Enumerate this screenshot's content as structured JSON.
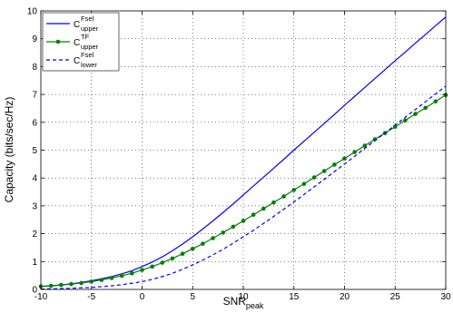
{
  "chart_data": {
    "type": "line",
    "title": "",
    "xlabel": "SNR",
    "xlabel_sub": "peak",
    "ylabel": "Capacity (bits/sec/Hz)",
    "xlim": [
      -10,
      30
    ],
    "ylim": [
      0,
      10
    ],
    "xticks": [
      -10,
      -5,
      0,
      5,
      10,
      15,
      20,
      25,
      30
    ],
    "yticks": [
      0,
      1,
      2,
      3,
      4,
      5,
      6,
      7,
      8,
      9,
      10
    ],
    "grid": true,
    "legend_position": "top-left",
    "x": [
      -10,
      -9,
      -8,
      -7,
      -6,
      -5,
      -4,
      -3,
      -2,
      -1,
      0,
      1,
      2,
      3,
      4,
      5,
      6,
      7,
      8,
      9,
      10,
      11,
      12,
      13,
      14,
      15,
      16,
      17,
      18,
      19,
      20,
      21,
      22,
      23,
      24,
      25,
      26,
      27,
      28,
      29,
      30
    ],
    "series": [
      {
        "name": "C",
        "sup": "Fsel",
        "sub": "upper",
        "color": "#0000ff",
        "line_style": "solid",
        "marker": "none",
        "values": [
          0.1,
          0.13,
          0.16,
          0.2,
          0.25,
          0.31,
          0.38,
          0.46,
          0.56,
          0.67,
          0.82,
          0.98,
          1.17,
          1.39,
          1.63,
          1.89,
          2.17,
          2.46,
          2.76,
          3.07,
          3.39,
          3.71,
          4.03,
          4.35,
          4.67,
          5.0,
          5.32,
          5.64,
          5.96,
          6.28,
          6.61,
          6.93,
          7.25,
          7.57,
          7.89,
          8.21,
          8.52,
          8.84,
          9.15,
          9.47,
          9.78
        ]
      },
      {
        "name": "C",
        "sup": "TF",
        "sub": "upper",
        "color": "#007f00",
        "line_style": "solid",
        "marker": "dot",
        "values": [
          0.11,
          0.13,
          0.16,
          0.19,
          0.23,
          0.28,
          0.34,
          0.41,
          0.49,
          0.58,
          0.7,
          0.82,
          0.96,
          1.11,
          1.28,
          1.46,
          1.64,
          1.84,
          2.04,
          2.25,
          2.46,
          2.68,
          2.9,
          3.12,
          3.34,
          3.57,
          3.79,
          4.02,
          4.25,
          4.48,
          4.7,
          4.93,
          5.16,
          5.39,
          5.61,
          5.84,
          6.07,
          6.3,
          6.52,
          6.75,
          6.98
        ]
      },
      {
        "name": "C",
        "sup": "Fsel",
        "sub": "lower",
        "color": "#0000ff",
        "line_style": "dashed",
        "marker": "none",
        "values": [
          0.01,
          0.02,
          0.03,
          0.04,
          0.06,
          0.07,
          0.1,
          0.13,
          0.17,
          0.22,
          0.28,
          0.36,
          0.46,
          0.58,
          0.72,
          0.88,
          1.05,
          1.24,
          1.44,
          1.66,
          1.89,
          2.12,
          2.37,
          2.62,
          2.88,
          3.14,
          3.41,
          3.68,
          3.95,
          4.23,
          4.5,
          4.78,
          5.06,
          5.34,
          5.62,
          5.9,
          6.18,
          6.46,
          6.74,
          7.02,
          7.3
        ]
      }
    ]
  }
}
